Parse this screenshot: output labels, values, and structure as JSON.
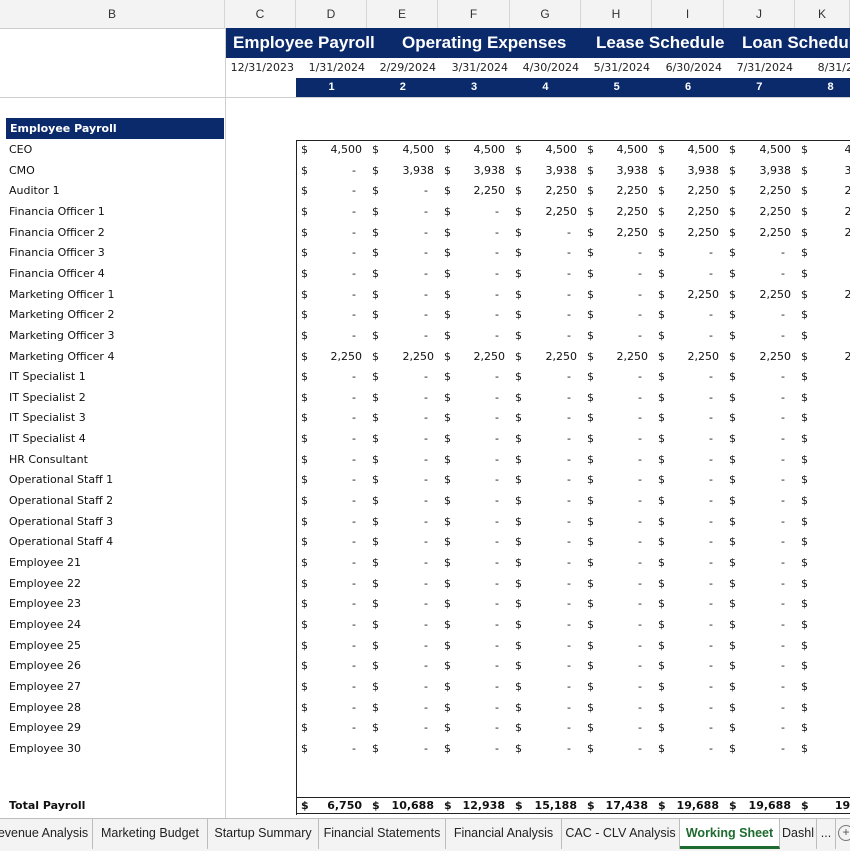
{
  "column_headers": [
    "B",
    "C",
    "D",
    "E",
    "F",
    "G",
    "H",
    "I",
    "J",
    "K"
  ],
  "nav": [
    "Employee Payroll",
    "Operating Expenses",
    "Lease Schedule",
    "Loan Schedule"
  ],
  "dates": [
    "12/31/2023",
    "1/31/2024",
    "2/29/2024",
    "3/31/2024",
    "4/30/2024",
    "5/31/2024",
    "6/30/2024",
    "7/31/2024",
    "8/31/20"
  ],
  "period_numbers": [
    "1",
    "2",
    "3",
    "4",
    "5",
    "6",
    "7",
    "8"
  ],
  "section_title": "Employee Payroll",
  "currency_symbol": "$",
  "rows": [
    {
      "label": "CEO",
      "values": [
        "4,500",
        "4,500",
        "4,500",
        "4,500",
        "4,500",
        "4,500",
        "4,500",
        "4,5"
      ]
    },
    {
      "label": "CMO",
      "values": [
        "-",
        "3,938",
        "3,938",
        "3,938",
        "3,938",
        "3,938",
        "3,938",
        "3,9"
      ]
    },
    {
      "label": "Auditor 1",
      "values": [
        "-",
        "-",
        "2,250",
        "2,250",
        "2,250",
        "2,250",
        "2,250",
        "2,2"
      ]
    },
    {
      "label": "Financia Officer 1",
      "values": [
        "-",
        "-",
        "-",
        "2,250",
        "2,250",
        "2,250",
        "2,250",
        "2,2"
      ]
    },
    {
      "label": "Financia Officer 2",
      "values": [
        "-",
        "-",
        "-",
        "-",
        "2,250",
        "2,250",
        "2,250",
        "2,2"
      ]
    },
    {
      "label": "Financia Officer 3",
      "values": [
        "-",
        "-",
        "-",
        "-",
        "-",
        "-",
        "-",
        "-"
      ]
    },
    {
      "label": "Financia Officer 4",
      "values": [
        "-",
        "-",
        "-",
        "-",
        "-",
        "-",
        "-",
        "-"
      ]
    },
    {
      "label": "Marketing Officer 1",
      "values": [
        "-",
        "-",
        "-",
        "-",
        "-",
        "2,250",
        "2,250",
        "2,2"
      ]
    },
    {
      "label": "Marketing Officer 2",
      "values": [
        "-",
        "-",
        "-",
        "-",
        "-",
        "-",
        "-",
        "-"
      ]
    },
    {
      "label": "Marketing Officer 3",
      "values": [
        "-",
        "-",
        "-",
        "-",
        "-",
        "-",
        "-",
        "-"
      ]
    },
    {
      "label": "Marketing Officer 4",
      "values": [
        "2,250",
        "2,250",
        "2,250",
        "2,250",
        "2,250",
        "2,250",
        "2,250",
        "2,2"
      ]
    },
    {
      "label": "IT Specialist 1",
      "values": [
        "-",
        "-",
        "-",
        "-",
        "-",
        "-",
        "-",
        "-"
      ]
    },
    {
      "label": "IT Specialist 2",
      "values": [
        "-",
        "-",
        "-",
        "-",
        "-",
        "-",
        "-",
        "-"
      ]
    },
    {
      "label": "IT Specialist 3",
      "values": [
        "-",
        "-",
        "-",
        "-",
        "-",
        "-",
        "-",
        "-"
      ]
    },
    {
      "label": "IT Specialist 4",
      "values": [
        "-",
        "-",
        "-",
        "-",
        "-",
        "-",
        "-",
        "-"
      ]
    },
    {
      "label": "HR Consultant",
      "values": [
        "-",
        "-",
        "-",
        "-",
        "-",
        "-",
        "-",
        "-"
      ]
    },
    {
      "label": "Operational Staff 1",
      "values": [
        "-",
        "-",
        "-",
        "-",
        "-",
        "-",
        "-",
        "-"
      ]
    },
    {
      "label": "Operational Staff 2",
      "values": [
        "-",
        "-",
        "-",
        "-",
        "-",
        "-",
        "-",
        "-"
      ]
    },
    {
      "label": "Operational Staff 3",
      "values": [
        "-",
        "-",
        "-",
        "-",
        "-",
        "-",
        "-",
        "-"
      ]
    },
    {
      "label": "Operational Staff 4",
      "values": [
        "-",
        "-",
        "-",
        "-",
        "-",
        "-",
        "-",
        "-"
      ]
    },
    {
      "label": "Employee 21",
      "values": [
        "-",
        "-",
        "-",
        "-",
        "-",
        "-",
        "-",
        "-"
      ]
    },
    {
      "label": "Employee 22",
      "values": [
        "-",
        "-",
        "-",
        "-",
        "-",
        "-",
        "-",
        "-"
      ]
    },
    {
      "label": "Employee 23",
      "values": [
        "-",
        "-",
        "-",
        "-",
        "-",
        "-",
        "-",
        "-"
      ]
    },
    {
      "label": "Employee 24",
      "values": [
        "-",
        "-",
        "-",
        "-",
        "-",
        "-",
        "-",
        "-"
      ]
    },
    {
      "label": "Employee 25",
      "values": [
        "-",
        "-",
        "-",
        "-",
        "-",
        "-",
        "-",
        "-"
      ]
    },
    {
      "label": "Employee 26",
      "values": [
        "-",
        "-",
        "-",
        "-",
        "-",
        "-",
        "-",
        "-"
      ]
    },
    {
      "label": "Employee 27",
      "values": [
        "-",
        "-",
        "-",
        "-",
        "-",
        "-",
        "-",
        "-"
      ]
    },
    {
      "label": "Employee 28",
      "values": [
        "-",
        "-",
        "-",
        "-",
        "-",
        "-",
        "-",
        "-"
      ]
    },
    {
      "label": "Employee 29",
      "values": [
        "-",
        "-",
        "-",
        "-",
        "-",
        "-",
        "-",
        "-"
      ]
    },
    {
      "label": "Employee 30",
      "values": [
        "-",
        "-",
        "-",
        "-",
        "-",
        "-",
        "-",
        "-"
      ]
    }
  ],
  "total": {
    "label": "Total Payroll",
    "values": [
      "6,750",
      "10,688",
      "12,938",
      "15,188",
      "17,438",
      "19,688",
      "19,688",
      "19,6"
    ]
  },
  "sheet_tabs": [
    "evenue Analysis",
    "Marketing Budget",
    "Startup Summary",
    "Financial Statements",
    "Financial Analysis",
    "CAC - CLV Analysis",
    "Working Sheet",
    "Dashl",
    "..."
  ],
  "active_sheet": "Working Sheet",
  "add_sheet_label": "+",
  "colors": {
    "header_blue": "#0b2a6b",
    "active_tab_green": "#1d6b2f"
  }
}
